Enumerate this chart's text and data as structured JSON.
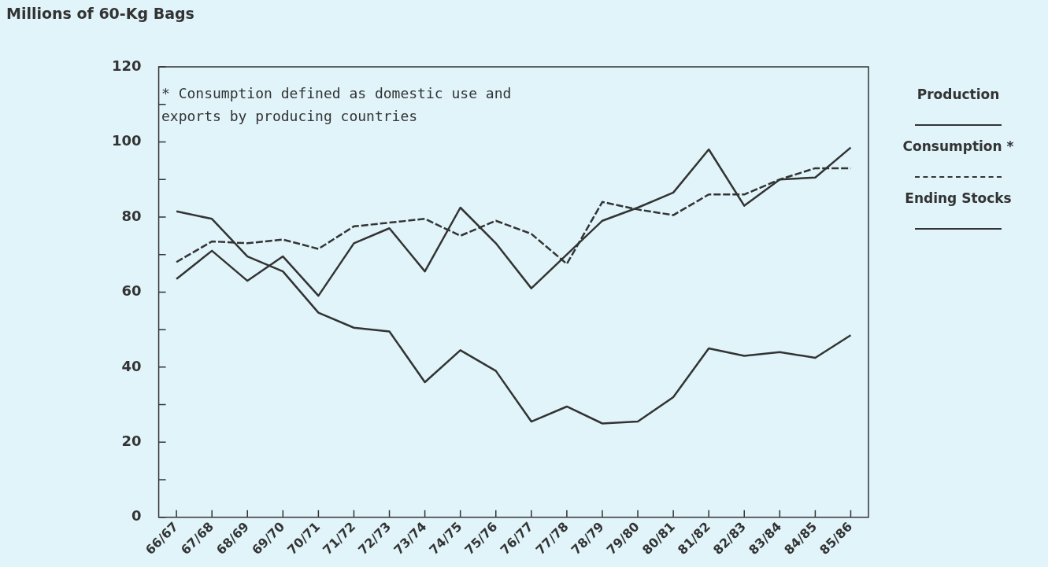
{
  "chart_data": {
    "type": "line",
    "ylabel": "Millions of 60-Kg Bags",
    "categories": [
      "66/67",
      "67/68",
      "68/69",
      "69/70",
      "70/71",
      "71/72",
      "72/73",
      "73/74",
      "74/75",
      "75/76",
      "76/77",
      "77/78",
      "78/79",
      "79/80",
      "80/81",
      "81/82",
      "82/83",
      "83/84",
      "84/85",
      "85/86"
    ],
    "series": [
      {
        "name": "Production",
        "color": "#333333",
        "line_style": "solid",
        "values": [
          63.5,
          71,
          63,
          69.5,
          59,
          73,
          77,
          65.5,
          82.5,
          73,
          61,
          70,
          79,
          82.5,
          86.5,
          98,
          83,
          90,
          90.5,
          98.5
        ]
      },
      {
        "name": "Consumption *",
        "color": "#333333",
        "line_style": "dashed",
        "values": [
          68,
          73.5,
          73,
          74,
          71.5,
          77.5,
          78.5,
          79.5,
          75,
          79,
          75.5,
          67.5,
          84,
          82,
          80.5,
          86,
          86,
          90,
          93,
          93
        ]
      },
      {
        "name": "Ending Stocks",
        "color": "#333333",
        "line_style": "solid",
        "values": [
          81.5,
          79.5,
          69.5,
          65.5,
          54.5,
          50.5,
          49.5,
          36,
          44.5,
          39,
          25.5,
          29.5,
          25,
          25.5,
          32,
          45,
          43,
          44,
          42.5,
          48.5
        ]
      }
    ],
    "ylim": [
      0,
      120
    ],
    "yticks": [
      0,
      {
        "value": 10,
        "label": null
      },
      20,
      {
        "value": 30,
        "label": null
      },
      40,
      {
        "value": 50,
        "label": null
      },
      60,
      {
        "value": 70,
        "label": null
      },
      80,
      {
        "value": 90,
        "label": null
      },
      100,
      {
        "value": 110,
        "label": null
      },
      120
    ],
    "annotations": [
      "* Consumption defined as domestic use and exports by producing countries"
    ],
    "legend": "right",
    "marker": "none",
    "grid": false
  }
}
